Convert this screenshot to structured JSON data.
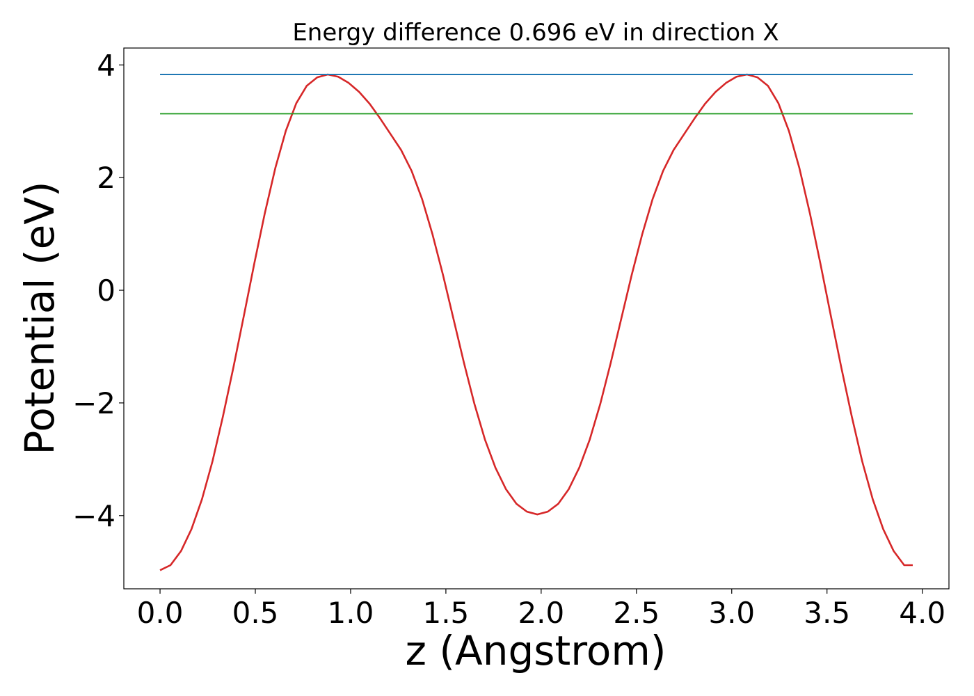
{
  "chart_data": {
    "type": "line",
    "title": "Energy difference 0.696 eV in direction X",
    "xlabel": "z (Angstrom)",
    "ylabel": "Potential (eV)",
    "xlim": [
      -0.19,
      4.14
    ],
    "ylim": [
      -5.3,
      4.3
    ],
    "xticks": [
      0.0,
      0.5,
      1.0,
      1.5,
      2.0,
      2.5,
      3.0,
      3.5,
      4.0
    ],
    "xtick_labels": [
      "0.0",
      "0.5",
      "1.0",
      "1.5",
      "2.0",
      "2.5",
      "3.0",
      "3.5",
      "4.0"
    ],
    "yticks": [
      -4,
      -2,
      0,
      2,
      4
    ],
    "ytick_labels": [
      "−4",
      "−2",
      "0",
      "2",
      "4"
    ],
    "grid": false,
    "legend": false,
    "series": [
      {
        "kind": "curve",
        "color": "#d62728",
        "x": [
          0.0,
          0.055,
          0.11,
          0.165,
          0.22,
          0.275,
          0.33,
          0.385,
          0.44,
          0.495,
          0.55,
          0.605,
          0.66,
          0.715,
          0.77,
          0.825,
          0.88,
          0.935,
          0.99,
          1.045,
          1.1,
          1.155,
          1.21,
          1.265,
          1.32,
          1.375,
          1.43,
          1.485,
          1.54,
          1.595,
          1.65,
          1.705,
          1.76,
          1.815,
          1.87,
          1.925,
          1.98,
          2.035,
          2.09,
          2.145,
          2.2,
          2.255,
          2.31,
          2.365,
          2.42,
          2.475,
          2.53,
          2.585,
          2.64,
          2.695,
          2.75,
          2.805,
          2.86,
          2.915,
          2.97,
          3.025,
          3.08,
          3.135,
          3.19,
          3.245,
          3.3,
          3.355,
          3.41,
          3.465,
          3.52,
          3.575,
          3.63,
          3.685,
          3.74,
          3.795,
          3.85,
          3.905,
          3.95
        ],
        "y": [
          -4.97,
          -4.88,
          -4.63,
          -4.24,
          -3.71,
          -3.04,
          -2.24,
          -1.37,
          -0.45,
          0.48,
          1.37,
          2.17,
          2.83,
          3.32,
          3.63,
          3.78,
          3.83,
          3.79,
          3.68,
          3.52,
          3.31,
          3.05,
          2.77,
          2.49,
          2.12,
          1.62,
          0.99,
          0.27,
          -0.51,
          -1.29,
          -2.02,
          -2.65,
          -3.15,
          -3.53,
          -3.79,
          -3.93,
          -3.98,
          -3.93,
          -3.79,
          -3.53,
          -3.15,
          -2.65,
          -2.02,
          -1.29,
          -0.51,
          0.27,
          0.99,
          1.62,
          2.12,
          2.49,
          2.77,
          3.05,
          3.31,
          3.52,
          3.68,
          3.79,
          3.83,
          3.78,
          3.63,
          3.32,
          2.83,
          2.17,
          1.37,
          0.48,
          -0.45,
          -1.37,
          -2.24,
          -3.04,
          -3.71,
          -4.24,
          -4.63,
          -4.88,
          -4.88
        ]
      },
      {
        "kind": "hline",
        "color": "#1f77b4",
        "x": [
          0.0,
          3.95
        ],
        "y": [
          3.83,
          3.83
        ]
      },
      {
        "kind": "hline",
        "color": "#2ca02c",
        "x": [
          0.0,
          3.95
        ],
        "y": [
          3.134,
          3.134
        ]
      }
    ]
  }
}
